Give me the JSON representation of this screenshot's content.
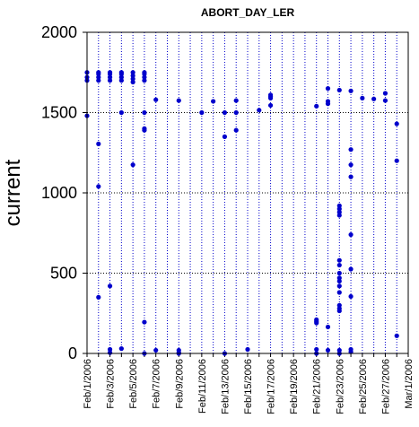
{
  "chart_data": {
    "type": "scatter",
    "title": "ABORT_DAY_LER",
    "xlabel": "",
    "ylabel": "current",
    "xlim": [
      "Feb/1/2006",
      "Mar/1/2006"
    ],
    "ylim": [
      0,
      2000
    ],
    "y_ticks": [
      "0",
      "500",
      "1000",
      "1500",
      "2000"
    ],
    "x_tick_labels": [
      "Feb/1/2006",
      "Feb/3/2006",
      "Feb/5/2006",
      "Feb/7/2006",
      "Feb/9/2006",
      "Feb/11/2006",
      "Feb/13/2006",
      "Feb/15/2006",
      "Feb/17/2006",
      "Feb/19/2006",
      "Feb/21/2006",
      "Feb/23/2006",
      "Feb/25/2006",
      "Feb/27/2006",
      "Mar/1/2006"
    ],
    "x_tick_dates": [
      "2006-02-01",
      "2006-02-03",
      "2006-02-05",
      "2006-02-07",
      "2006-02-09",
      "2006-02-11",
      "2006-02-13",
      "2006-02-15",
      "2006-02-17",
      "2006-02-19",
      "2006-02-21",
      "2006-02-23",
      "2006-02-25",
      "2006-02-27",
      "2006-03-01"
    ],
    "grid": {
      "vertical": "dotted daily",
      "horizontal": "dotted at 500, 1000, 1500"
    },
    "marker_color": "#0000cc",
    "grid_color": "#0000cc",
    "points": [
      {
        "x": "2006-02-01",
        "y": [
          1480,
          1700,
          1720,
          1750
        ]
      },
      {
        "x": "2006-02-02",
        "y": [
          1700,
          1720,
          1740,
          1750,
          1305,
          1040,
          350
        ]
      },
      {
        "x": "2006-02-03",
        "y": [
          1700,
          1720,
          1740,
          1750,
          420,
          25,
          5
        ]
      },
      {
        "x": "2006-02-04",
        "y": [
          1700,
          1720,
          1740,
          1750,
          1500,
          30
        ]
      },
      {
        "x": "2006-02-05",
        "y": [
          1690,
          1710,
          1730,
          1750,
          1175
        ]
      },
      {
        "x": "2006-02-06",
        "y": [
          1700,
          1720,
          1740,
          1750,
          1500,
          1400,
          1390,
          195,
          0
        ]
      },
      {
        "x": "2006-02-07",
        "y": [
          1580,
          20
        ]
      },
      {
        "x": "2006-02-09",
        "y": [
          1575,
          20,
          5,
          0
        ]
      },
      {
        "x": "2006-02-11",
        "y": [
          1500
        ]
      },
      {
        "x": "2006-02-12",
        "y": [
          1570
        ]
      },
      {
        "x": "2006-02-13",
        "y": [
          1500,
          1350,
          0
        ]
      },
      {
        "x": "2006-02-14",
        "y": [
          1575,
          1500,
          1390
        ]
      },
      {
        "x": "2006-02-15",
        "y": [
          25
        ]
      },
      {
        "x": "2006-02-16",
        "y": [
          1515
        ]
      },
      {
        "x": "2006-02-17",
        "y": [
          1610,
          1600,
          1590,
          1545
        ]
      },
      {
        "x": "2006-02-21",
        "y": [
          1540,
          210,
          200,
          190,
          25,
          0
        ]
      },
      {
        "x": "2006-02-22",
        "y": [
          1650,
          1570,
          1555,
          165,
          20
        ]
      },
      {
        "x": "2006-02-23",
        "y": [
          1640,
          920,
          900,
          880,
          860,
          580,
          550,
          500,
          470,
          450,
          420,
          380,
          300,
          280,
          265,
          20,
          0
        ]
      },
      {
        "x": "2006-02-24",
        "y": [
          1635,
          1270,
          1175,
          1100,
          740,
          525,
          355,
          25,
          10
        ]
      },
      {
        "x": "2006-02-25",
        "y": [
          1590
        ]
      },
      {
        "x": "2006-02-26",
        "y": [
          1585
        ]
      },
      {
        "x": "2006-02-27",
        "y": [
          1620,
          1575
        ]
      },
      {
        "x": "2006-02-28",
        "y": [
          1430,
          1200,
          110
        ]
      }
    ]
  }
}
